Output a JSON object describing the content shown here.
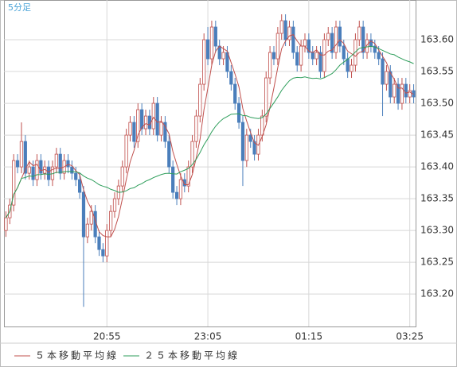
{
  "chart_data": {
    "type": "candlestick",
    "title": "5分足",
    "categories": [
      null,
      null,
      null,
      null,
      null,
      null,
      null,
      null,
      null,
      null,
      null,
      null,
      null,
      null,
      null,
      null,
      null,
      null,
      null,
      null,
      null,
      null,
      null,
      null,
      null,
      null,
      "20:55",
      null,
      null,
      null,
      null,
      null,
      null,
      null,
      null,
      null,
      null,
      null,
      null,
      null,
      null,
      null,
      null,
      null,
      null,
      null,
      null,
      null,
      null,
      null,
      null,
      null,
      "23:05",
      null,
      null,
      null,
      null,
      null,
      null,
      null,
      null,
      null,
      null,
      null,
      null,
      null,
      null,
      null,
      null,
      null,
      null,
      null,
      null,
      null,
      null,
      null,
      null,
      null,
      "01:15",
      null,
      null,
      null,
      null,
      null,
      null,
      null,
      null,
      null,
      null,
      null,
      null,
      null,
      null,
      null,
      null,
      null,
      null,
      null,
      null,
      null,
      null,
      null,
      null,
      null,
      "03:25",
      null
    ],
    "open": [
      163.3,
      163.32,
      163.34,
      163.41,
      163.4,
      163.44,
      163.39,
      163.4,
      163.38,
      163.41,
      163.39,
      163.4,
      163.38,
      163.4,
      163.42,
      163.39,
      163.41,
      163.4,
      163.39,
      163.38,
      163.36,
      163.29,
      163.31,
      163.33,
      163.29,
      163.27,
      163.26,
      163.3,
      163.33,
      163.35,
      163.37,
      163.4,
      163.45,
      163.47,
      163.44,
      163.49,
      163.46,
      163.48,
      163.46,
      163.5,
      163.45,
      163.47,
      163.44,
      163.4,
      163.36,
      163.35,
      163.38,
      163.37,
      163.4,
      163.44,
      163.48,
      163.53,
      163.6,
      163.57,
      163.62,
      163.59,
      163.57,
      163.58,
      163.55,
      163.53,
      163.5,
      163.47,
      163.41,
      163.45,
      163.44,
      163.42,
      163.45,
      163.48,
      163.54,
      163.58,
      163.57,
      163.61,
      163.63,
      163.6,
      163.62,
      163.58,
      163.56,
      163.59,
      163.6,
      163.58,
      163.57,
      163.58,
      163.55,
      163.6,
      163.61,
      163.58,
      163.62,
      163.59,
      163.57,
      163.55,
      163.56,
      163.6,
      163.62,
      163.58,
      163.6,
      163.59,
      163.58,
      163.57,
      163.53,
      163.55,
      163.51,
      163.53,
      163.5,
      163.53,
      163.51,
      163.52
    ],
    "high": [
      163.33,
      163.35,
      163.42,
      163.42,
      163.47,
      163.45,
      163.41,
      163.41,
      163.42,
      163.42,
      163.41,
      163.41,
      163.41,
      163.43,
      163.43,
      163.42,
      163.42,
      163.41,
      163.4,
      163.39,
      163.37,
      163.32,
      163.34,
      163.34,
      163.3,
      163.28,
      163.31,
      163.34,
      163.36,
      163.38,
      163.41,
      163.46,
      163.48,
      163.48,
      163.5,
      163.5,
      163.49,
      163.49,
      163.51,
      163.51,
      163.48,
      163.48,
      163.45,
      163.41,
      163.37,
      163.39,
      163.39,
      163.41,
      163.45,
      163.49,
      163.54,
      163.61,
      163.62,
      163.63,
      163.63,
      163.6,
      163.59,
      163.59,
      163.56,
      163.54,
      163.51,
      163.48,
      163.46,
      163.46,
      163.45,
      163.46,
      163.49,
      163.55,
      163.59,
      163.59,
      163.62,
      163.64,
      163.64,
      163.63,
      163.63,
      163.59,
      163.6,
      163.61,
      163.61,
      163.59,
      163.59,
      163.59,
      163.61,
      163.62,
      163.62,
      163.63,
      163.63,
      163.6,
      163.58,
      163.57,
      163.61,
      163.63,
      163.63,
      163.61,
      163.61,
      163.6,
      163.59,
      163.58,
      163.56,
      163.56,
      163.54,
      163.54,
      163.54,
      163.54,
      163.53,
      163.53
    ],
    "low": [
      163.29,
      163.31,
      163.33,
      163.39,
      163.39,
      163.38,
      163.38,
      163.37,
      163.37,
      163.38,
      163.38,
      163.37,
      163.37,
      163.39,
      163.38,
      163.38,
      163.39,
      163.38,
      163.37,
      163.35,
      163.18,
      163.28,
      163.3,
      163.28,
      163.26,
      163.25,
      163.25,
      163.29,
      163.32,
      163.34,
      163.36,
      163.39,
      163.44,
      163.43,
      163.43,
      163.45,
      163.45,
      163.45,
      163.45,
      163.44,
      163.44,
      163.43,
      163.39,
      163.35,
      163.34,
      163.34,
      163.36,
      163.36,
      163.39,
      163.43,
      163.47,
      163.52,
      163.56,
      163.56,
      163.58,
      163.56,
      163.56,
      163.54,
      163.52,
      163.49,
      163.46,
      163.37,
      163.4,
      163.43,
      163.41,
      163.41,
      163.44,
      163.47,
      163.53,
      163.56,
      163.56,
      163.6,
      163.59,
      163.59,
      163.57,
      163.55,
      163.55,
      163.58,
      163.57,
      163.56,
      163.56,
      163.54,
      163.54,
      163.59,
      163.57,
      163.57,
      163.58,
      163.56,
      163.54,
      163.54,
      163.55,
      163.59,
      163.57,
      163.57,
      163.58,
      163.57,
      163.56,
      163.48,
      163.52,
      163.5,
      163.5,
      163.49,
      163.49,
      163.5,
      163.5,
      163.5
    ],
    "close": [
      163.32,
      163.34,
      163.41,
      163.4,
      163.44,
      163.39,
      163.4,
      163.38,
      163.41,
      163.39,
      163.4,
      163.38,
      163.4,
      163.42,
      163.39,
      163.41,
      163.4,
      163.39,
      163.38,
      163.36,
      163.29,
      163.31,
      163.33,
      163.29,
      163.27,
      163.26,
      163.3,
      163.33,
      163.35,
      163.37,
      163.4,
      163.45,
      163.47,
      163.44,
      163.49,
      163.46,
      163.48,
      163.46,
      163.5,
      163.45,
      163.47,
      163.44,
      163.4,
      163.36,
      163.35,
      163.38,
      163.37,
      163.4,
      163.44,
      163.48,
      163.53,
      163.6,
      163.57,
      163.62,
      163.59,
      163.57,
      163.58,
      163.55,
      163.53,
      163.5,
      163.47,
      163.41,
      163.45,
      163.44,
      163.42,
      163.45,
      163.48,
      163.54,
      163.58,
      163.57,
      163.61,
      163.63,
      163.6,
      163.62,
      163.58,
      163.56,
      163.59,
      163.6,
      163.58,
      163.57,
      163.58,
      163.55,
      163.6,
      163.61,
      163.58,
      163.62,
      163.59,
      163.57,
      163.55,
      163.56,
      163.6,
      163.62,
      163.58,
      163.6,
      163.59,
      163.58,
      163.57,
      163.53,
      163.55,
      163.51,
      163.53,
      163.5,
      163.53,
      163.51,
      163.52,
      163.51
    ],
    "up_color": "#c0504d",
    "down_color": "#4a7ebb",
    "series": [
      {
        "name": "５本移動平均線",
        "color": "#c0504d",
        "period": 5
      },
      {
        "name": "２５本移動平均線",
        "color": "#2e9e5b",
        "period": 25
      }
    ],
    "ylim": [
      163.149,
      163.6625
    ],
    "yticks": [
      {
        "value": 163.2,
        "label": "163.20"
      },
      163.25,
      {
        "value": 163.3,
        "label": "163.30"
      },
      163.35,
      {
        "value": 163.4,
        "label": "163.40"
      },
      163.45,
      {
        "value": 163.5,
        "label": "163.50"
      },
      163.55,
      {
        "value": 163.6,
        "label": "163.60"
      }
    ],
    "grid": true
  }
}
